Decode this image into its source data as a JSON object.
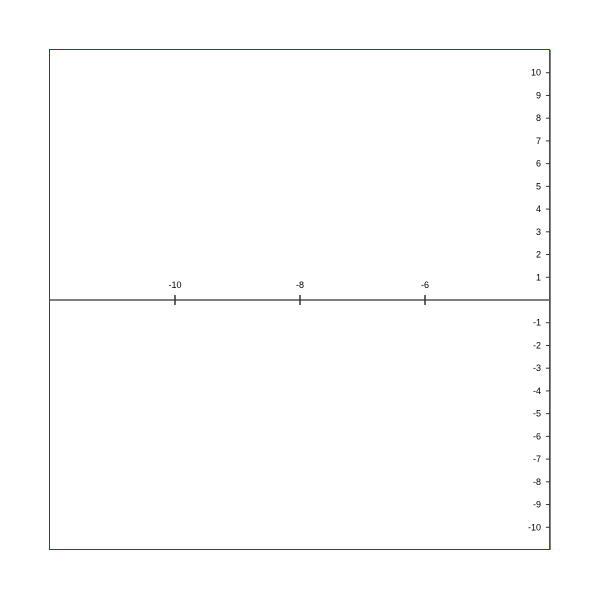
{
  "colors": {
    "frame": "#cc0000",
    "axis": "#555555",
    "tick": "#333333",
    "label": "#000000"
  },
  "chart_data": {
    "type": "line",
    "title": "",
    "xlabel": "",
    "ylabel": "",
    "xlim": [
      -12,
      -4
    ],
    "ylim": [
      -11,
      11
    ],
    "grid": false,
    "series": [],
    "x_ticks": [
      {
        "value": -10,
        "label": "-10"
      },
      {
        "value": -8,
        "label": "-8"
      },
      {
        "value": -6,
        "label": "-6"
      }
    ],
    "y_ticks": [
      {
        "value": 10,
        "label": "10"
      },
      {
        "value": 9,
        "label": "9"
      },
      {
        "value": 8,
        "label": "8"
      },
      {
        "value": 7,
        "label": "7"
      },
      {
        "value": 6,
        "label": "6"
      },
      {
        "value": 5,
        "label": "5"
      },
      {
        "value": 4,
        "label": "4"
      },
      {
        "value": 3,
        "label": "3"
      },
      {
        "value": 2,
        "label": "2"
      },
      {
        "value": 1,
        "label": "1"
      },
      {
        "value": -1,
        "label": "-1"
      },
      {
        "value": -2,
        "label": "-2"
      },
      {
        "value": -3,
        "label": "-3"
      },
      {
        "value": -4,
        "label": "-4"
      },
      {
        "value": -5,
        "label": "-5"
      },
      {
        "value": -6,
        "label": "-6"
      },
      {
        "value": -7,
        "label": "-7"
      },
      {
        "value": -8,
        "label": "-8"
      },
      {
        "value": -9,
        "label": "-9"
      },
      {
        "value": -10,
        "label": "-10"
      }
    ]
  }
}
